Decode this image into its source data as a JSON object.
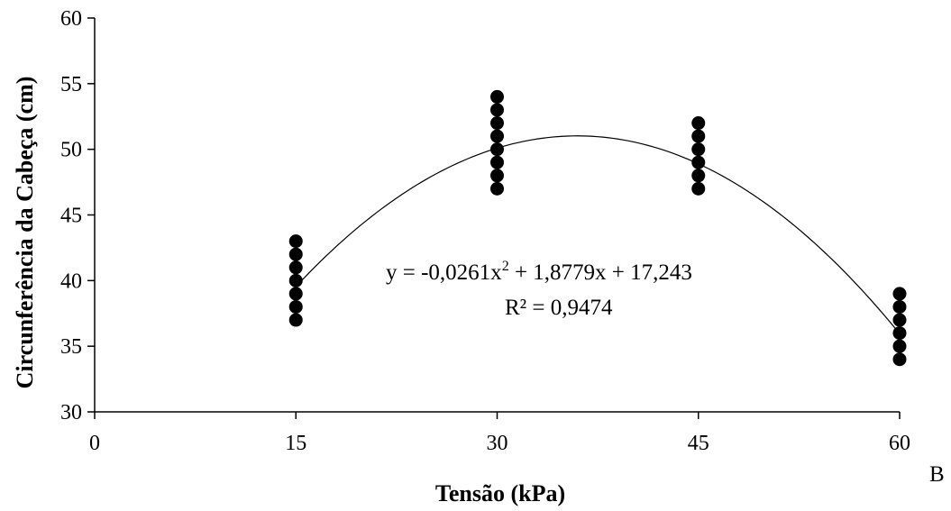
{
  "chart_data": {
    "type": "scatter",
    "xlabel": "Tensão (kPa)",
    "ylabel": "Circunferência  da  Cabeça (cm)",
    "xlim": [
      0,
      60
    ],
    "ylim": [
      30,
      60
    ],
    "xticks": [
      0,
      15,
      30,
      45,
      60
    ],
    "yticks": [
      30,
      35,
      40,
      45,
      50,
      55,
      60
    ],
    "grid": false,
    "points": [
      {
        "x": 15,
        "y": 37
      },
      {
        "x": 15,
        "y": 38
      },
      {
        "x": 15,
        "y": 39
      },
      {
        "x": 15,
        "y": 40
      },
      {
        "x": 15,
        "y": 41
      },
      {
        "x": 15,
        "y": 42
      },
      {
        "x": 15,
        "y": 43
      },
      {
        "x": 30,
        "y": 47
      },
      {
        "x": 30,
        "y": 48
      },
      {
        "x": 30,
        "y": 49
      },
      {
        "x": 30,
        "y": 50
      },
      {
        "x": 30,
        "y": 51
      },
      {
        "x": 30,
        "y": 52
      },
      {
        "x": 30,
        "y": 53
      },
      {
        "x": 30,
        "y": 54
      },
      {
        "x": 45,
        "y": 47
      },
      {
        "x": 45,
        "y": 48
      },
      {
        "x": 45,
        "y": 49
      },
      {
        "x": 45,
        "y": 50
      },
      {
        "x": 45,
        "y": 51
      },
      {
        "x": 45,
        "y": 52
      },
      {
        "x": 60,
        "y": 34
      },
      {
        "x": 60,
        "y": 35
      },
      {
        "x": 60,
        "y": 36
      },
      {
        "x": 60,
        "y": 37
      },
      {
        "x": 60,
        "y": 38
      },
      {
        "x": 60,
        "y": 39
      }
    ],
    "trendline": {
      "type": "polynomial",
      "coefficients": {
        "a": -0.0261,
        "b": 1.8779,
        "c": 17.243
      },
      "x_range": [
        15,
        60
      ],
      "equation_label": {
        "prefix": "y = -0,0261x",
        "superscript": "2",
        "suffix": " + 1,8779x + 17,243"
      },
      "r2_label": "R² = 0,9474"
    },
    "panel_label": "B"
  }
}
